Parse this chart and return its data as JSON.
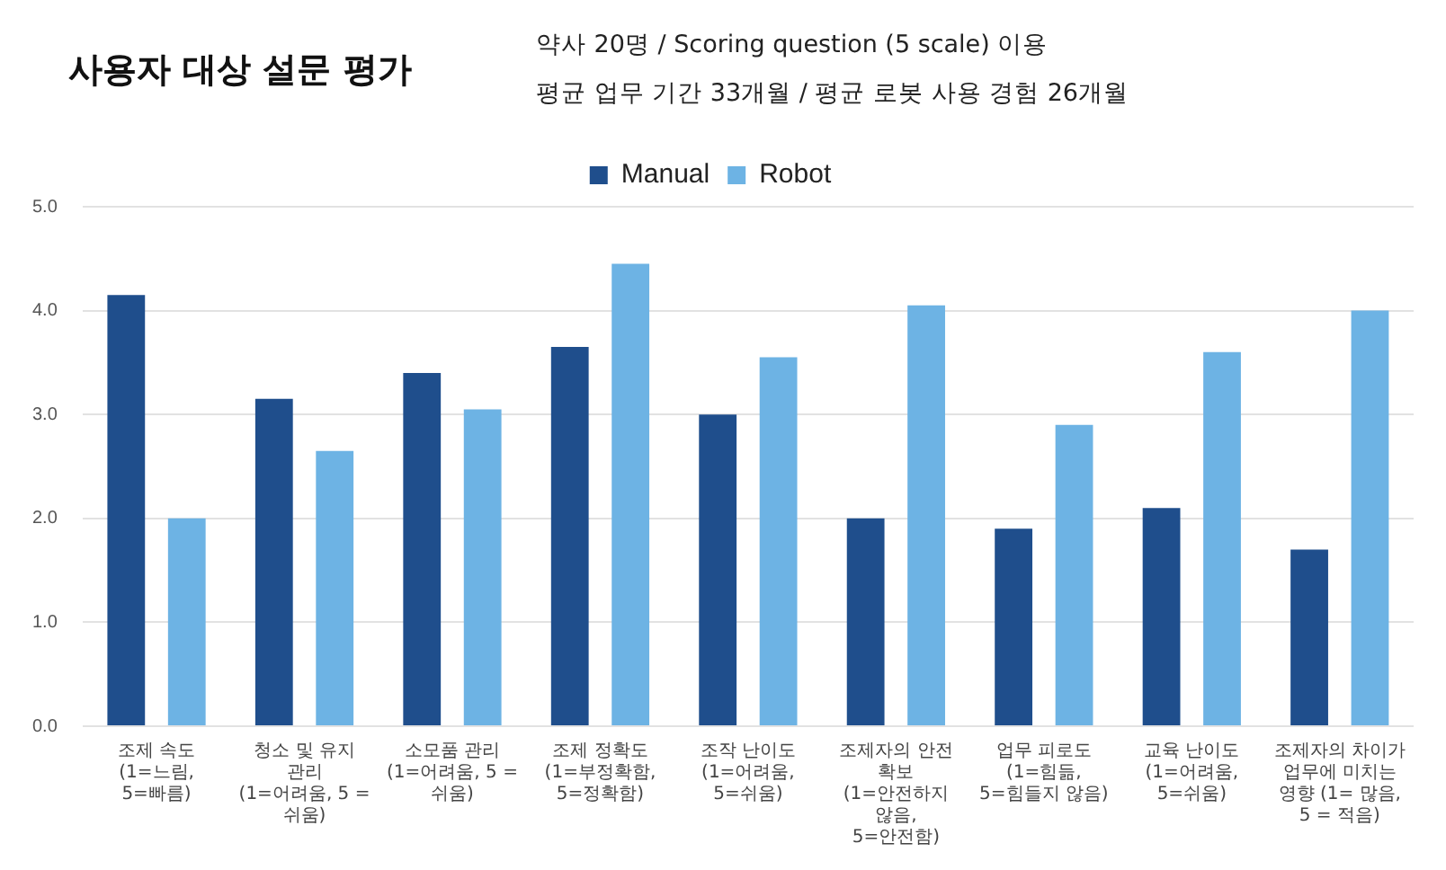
{
  "chart_data": {
    "type": "bar",
    "title": "사용자 대상 설문 평가",
    "subtitle": "약사 20명 / Scoring question (5 scale) 이용",
    "annotations": [
      "평균 업무 기간 33개월 / 평균 로봇 사용 경험 26개월"
    ],
    "categories": [
      "조제 속도 (1=느림, 5=빠름)",
      "청소 및 유지 관리 (1=어려움, 5 = 쉬움)",
      "소모품 관리 (1=어려움, 5 = 쉬움)",
      "조제 정확도 (1=부정확함, 5=정확함)",
      "조작 난이도 (1=어려움, 5=쉬움)",
      "조제자의 안전 확보 (1=안전하지 않음, 5=안전함)",
      "업무 피로도 (1=힘듦, 5=힘들지 않음)",
      "교육 난이도 (1=어려움, 5=쉬움)",
      "조제자의 차이가 업무에 미치는 영향 (1= 많음, 5 = 적음)"
    ],
    "series": [
      {
        "name": "Manual",
        "color": "#1f4e8c",
        "values": [
          4.15,
          3.15,
          3.4,
          3.65,
          3.0,
          2.0,
          1.9,
          2.1,
          1.7
        ]
      },
      {
        "name": "Robot",
        "color": "#6db3e4",
        "values": [
          2.0,
          2.65,
          3.05,
          4.45,
          3.55,
          4.05,
          2.9,
          3.6,
          4.0
        ]
      }
    ],
    "ylim": [
      0,
      5
    ],
    "yticks": [
      {
        "value": 0,
        "label": "0.0"
      },
      {
        "value": 1,
        "label": "1.0"
      },
      {
        "value": 2,
        "label": "2.0"
      },
      {
        "value": 3,
        "label": "3.0"
      },
      {
        "value": 4,
        "label": "4.0"
      },
      {
        "value": 5,
        "label": "5.0"
      }
    ],
    "grid": "y",
    "legend": "top"
  }
}
